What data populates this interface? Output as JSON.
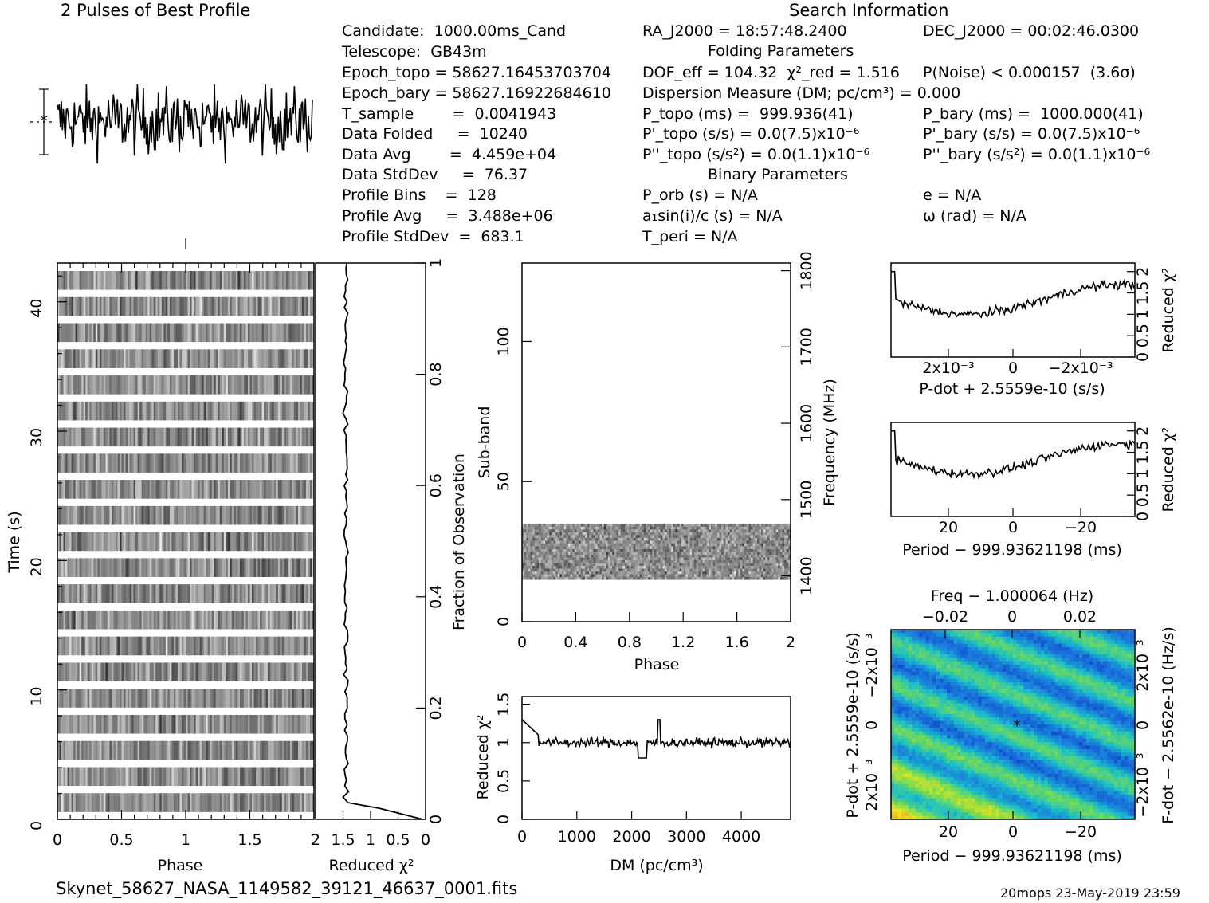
{
  "header": {
    "profile_title": "2 Pulses of Best Profile",
    "search_title": "Search Information",
    "folding_title": "Folding Parameters",
    "binary_title": "Binary Parameters"
  },
  "info_col1": [
    "Candidate:  1000.00ms_Cand",
    "Telescope:  GB43m",
    "Epoch_topo = 58627.16453703704",
    "Epoch_bary = 58627.16922684610",
    "T_sample        =  0.0041943",
    "Data Folded     =  10240",
    "Data Avg        =  4.459e+04",
    "Data StdDev     =  76.37",
    "Profile Bins    =  128",
    "Profile Avg     =  3.488e+06",
    "Profile StdDev  =  683.1"
  ],
  "info_col2": [
    "RA_J2000 = 18:57:48.2400",
    "DOF_eff = 104.32  χ²_red = 1.516",
    "Dispersion Measure (DM; pc/cm³) = 0.000",
    "P_topo (ms) =  999.936(41)",
    "P'_topo (s/s) = 0.0(7.5)x10⁻⁶",
    "P''_topo (s/s²) = 0.0(1.1)x10⁻⁶",
    "P_orb (s) = N/A",
    "a₁sin(i)/c (s) = N/A",
    "T_peri = N/A"
  ],
  "info_col3": [
    "DEC_J2000 = 00:02:46.0300",
    "P(Noise) < 0.000157  (3.6σ)",
    "P_bary (ms) =  1000.000(41)",
    "P'_bary (s/s) = 0.0(7.5)x10⁻⁶",
    "P''_bary (s/s²) = 0.0(1.1)x10⁻⁶",
    "e = N/A",
    "ω (rad) = N/A"
  ],
  "footer": {
    "filename": "Skynet_58627_NASA_1149582_39121_46637_0001.fits",
    "stamp": "20mops 23-May-2019 23:59"
  },
  "colors": {
    "ink": "#000000",
    "grid_low": "#0a1fb8",
    "grid_mid": "#19c0c8",
    "grid_high": "#f2e51a",
    "grid_peak": "#e0602a"
  },
  "chart_data": [
    {
      "type": "line",
      "title": "2 Pulses of Best Profile",
      "xlabel": "",
      "ylabel": "",
      "series": [
        {
          "values": "noisy pulse profile (2 periods, 256 points), no significant pulse"
        }
      ]
    },
    {
      "type": "heatmap",
      "xlabel": "Phase",
      "ylabel": "Time (s)",
      "x_ticks": [
        "0",
        "0.5",
        "1",
        "1.5"
      ],
      "y_ticks": [
        "0",
        "10",
        "20",
        "30",
        "40"
      ],
      "xlim": [
        0,
        2
      ],
      "ylim": [
        0,
        43
      ]
    },
    {
      "type": "line",
      "xlabel": "Reduced χ²",
      "y2label": "Fraction of Observation",
      "x_ticks": [
        "2",
        "1.5",
        "1",
        "0.5",
        "0"
      ],
      "y2_ticks": [
        "0",
        "0.2",
        "0.4",
        "0.6",
        "0.8",
        "1"
      ],
      "xlim": [
        2,
        0
      ],
      "ylim": [
        0,
        1
      ]
    },
    {
      "type": "heatmap",
      "xlabel": "Phase",
      "ylabel": "Sub-band",
      "y2label": "Frequency (MHz)",
      "x_ticks": [
        "0",
        "0.4",
        "0.8",
        "1.2",
        "1.6",
        "2"
      ],
      "y_ticks": [
        "0",
        "50",
        "100"
      ],
      "y2_ticks": [
        "1400",
        "1500",
        "1600",
        "1700",
        "1800"
      ],
      "xlim": [
        0,
        2
      ],
      "ylim": [
        0,
        128
      ],
      "filled_subbands": [
        15,
        35
      ]
    },
    {
      "type": "line",
      "xlabel": "DM (pc/cm³)",
      "ylabel": "Reduced χ²",
      "x_ticks": [
        "0",
        "1000",
        "2000",
        "3000",
        "4000"
      ],
      "y_ticks": [
        "0",
        "0.5",
        "1",
        "1.5"
      ],
      "xlim": [
        0,
        4900
      ],
      "ylim": [
        0,
        1.6
      ]
    },
    {
      "type": "line",
      "xlabel": "P-dot + 2.5559e-10 (s/s)",
      "y2label": "Reduced χ²",
      "x_ticks": [
        "2x10⁻³",
        "0",
        "−2x10⁻³"
      ],
      "y2_ticks": [
        "0",
        "0.5",
        "1",
        "1.5",
        "2"
      ],
      "ylim": [
        0,
        2.2
      ]
    },
    {
      "type": "line",
      "xlabel": "Period − 999.93621198 (ms)",
      "y2label": "Reduced χ²",
      "x_ticks": [
        "20",
        "0",
        "−20"
      ],
      "y2_ticks": [
        "0",
        "0.5",
        "1",
        "1.5",
        "2"
      ],
      "ylim": [
        0,
        2.2
      ]
    },
    {
      "type": "heatmap",
      "title": "Freq − 1.000064 (Hz)",
      "xlabel": "Period − 999.93621198 (ms)",
      "ylabel": "P-dot + 2.5559e-10 (s/s)",
      "y2label": "F-dot − 2.5562e-10 (Hz/s)",
      "x_ticks": [
        "20",
        "0",
        "−20"
      ],
      "x2_ticks": [
        "−0.02",
        "0",
        "0.02"
      ],
      "y_ticks": [
        "−2x10⁻³",
        "0",
        "2x10⁻³"
      ],
      "y2_ticks": [
        "2x10⁻³",
        "0",
        "−2x10⁻³"
      ],
      "best_marker": [
        0,
        0
      ]
    }
  ]
}
